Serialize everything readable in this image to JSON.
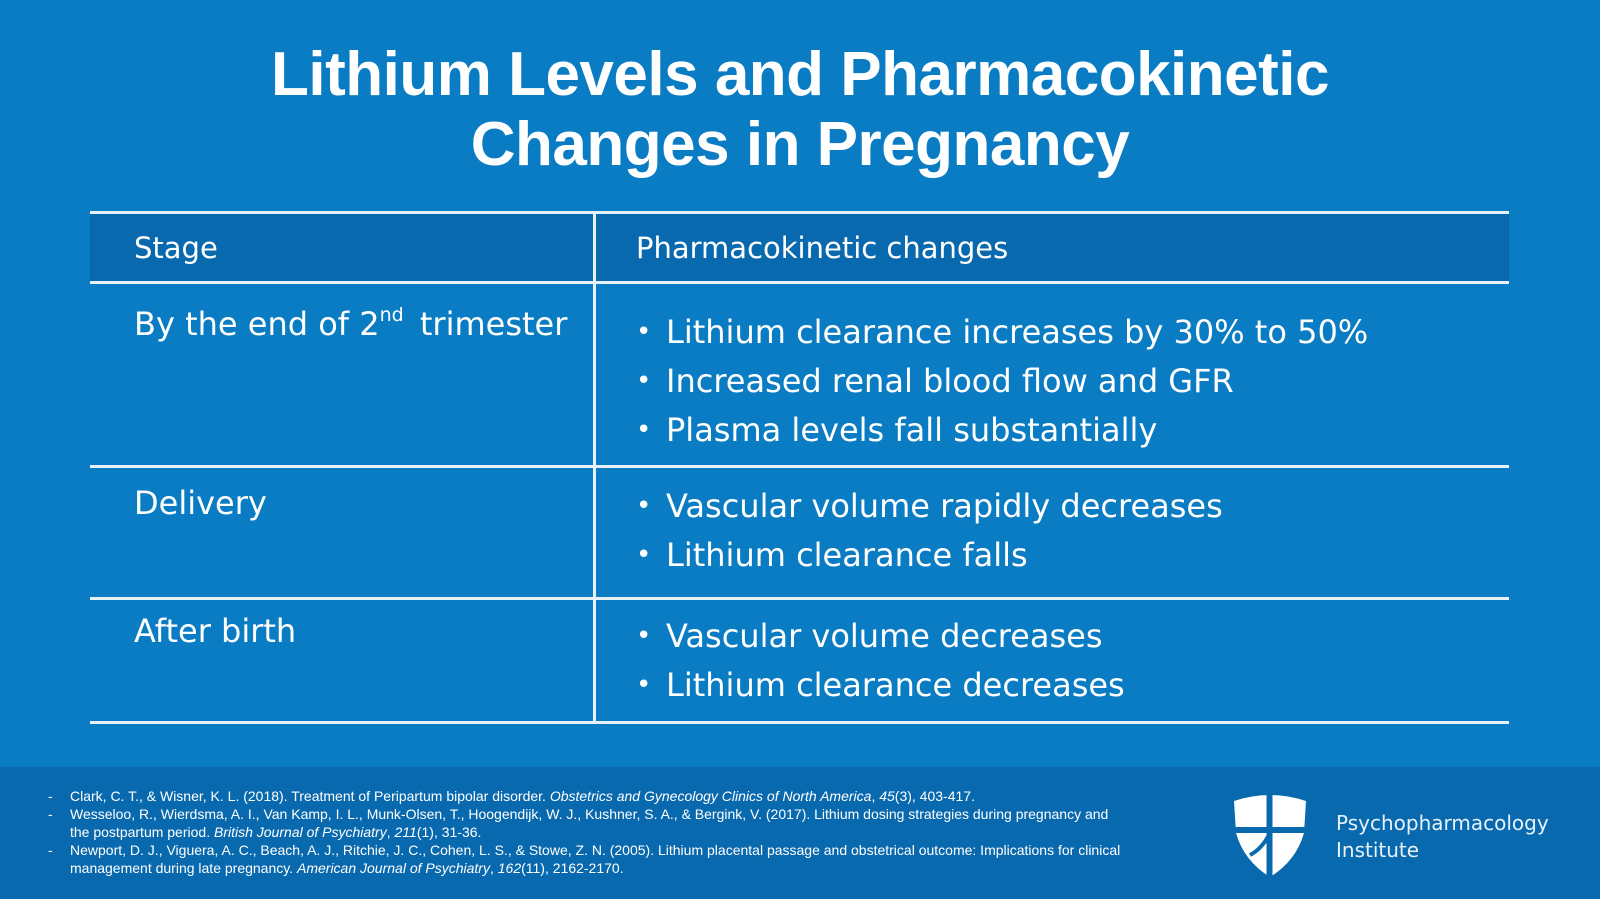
{
  "slide": {
    "title_line1": "Lithium Levels and Pharmacokinetic",
    "title_line2": "Changes in Pregnancy"
  },
  "table": {
    "headers": [
      "Stage",
      "Pharmacokinetic changes"
    ],
    "rows": [
      {
        "stage_base": "By the end of 2",
        "stage_sup": "nd",
        "stage_rest": "trimester",
        "changes": [
          "Lithium clearance increases by 30% to 50%",
          "Increased renal blood flow and GFR",
          "Plasma levels fall substantially"
        ]
      },
      {
        "stage": "Delivery",
        "changes": [
          "Vascular volume rapidly decreases",
          "Lithium clearance falls"
        ]
      },
      {
        "stage": "After birth",
        "changes": [
          "Vascular volume decreases",
          "Lithium clearance decreases"
        ]
      }
    ]
  },
  "references": [
    {
      "pre": "Clark, C. T., & Wisner, K. L. (2018). Treatment of Peripartum bipolar disorder. ",
      "journal": "Obstetrics and Gynecology Clinics of North America",
      "mid": ", ",
      "volume": "45",
      "post": "(3), 403-417."
    },
    {
      "pre": "Wesseloo, R., Wierdsma, A. I., Van Kamp, I. L., Munk-Olsen, T., Hoogendijk, W. J., Kushner, S. A., & Bergink, V. (2017). Lithium dosing strategies during pregnancy and the postpartum period. ",
      "journal": "British Journal of Psychiatry",
      "mid": ", ",
      "volume": "211",
      "post": "(1), 31-36."
    },
    {
      "pre": "Newport, D. J., Viguera, A. C., Beach, A. J., Ritchie, J. C., Cohen, L. S., & Stowe, Z. N. (2005). Lithium placental passage and obstetrical outcome: Implications for clinical management during late pregnancy. ",
      "journal": "American Journal of Psychiatry",
      "mid": ", ",
      "volume": "162",
      "post": "(11), 2162-2170."
    }
  ],
  "brand": {
    "line1": "Psychopharmacology",
    "line2": "Institute",
    "logo_icon": "shield-cross-icon",
    "background": "#0a7cc4",
    "header_background": "#0969ae"
  }
}
